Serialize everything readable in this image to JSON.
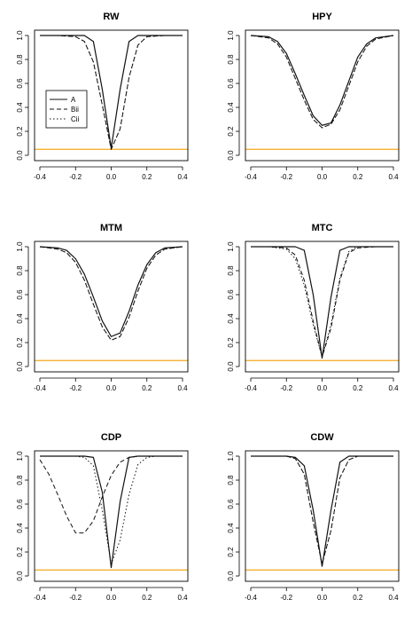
{
  "figure": {
    "colors": {
      "reference_line": "#F4A81D",
      "series_line": "#111111",
      "frame": "#000000"
    }
  },
  "chart_data": [
    {
      "type": "line",
      "title": "RW",
      "xlim": [
        -0.4,
        0.4
      ],
      "ylim": [
        0,
        1
      ],
      "x_ticks": [
        "-0.4",
        "-0.2",
        "0.0",
        "0.2",
        "0.4"
      ],
      "y_ticks": [
        "0.0",
        "0.2",
        "0.4",
        "0.6",
        "0.8",
        "1.0"
      ],
      "grid": false,
      "legend": {
        "position": "left",
        "entries": [
          "A",
          "Bii",
          "Cii"
        ]
      },
      "reference_line": {
        "y": 0.05
      },
      "x": [
        -0.4,
        -0.3,
        -0.2,
        -0.15,
        -0.1,
        -0.05,
        0,
        0.05,
        0.1,
        0.15,
        0.2,
        0.3,
        0.4
      ],
      "series": [
        {
          "name": "A",
          "style": "solid",
          "values": [
            1,
            1,
            1,
            1,
            0.95,
            0.55,
            0.06,
            0.55,
            0.95,
            1,
            1,
            1,
            1
          ]
        },
        {
          "name": "Bii",
          "style": "dashed",
          "values": [
            1,
            1,
            0.99,
            0.95,
            0.78,
            0.42,
            0.05,
            0.22,
            0.65,
            0.92,
            0.99,
            1,
            1
          ]
        },
        {
          "name": "Cii",
          "style": "dotted",
          "values": [
            1,
            1,
            0.99,
            0.95,
            0.78,
            0.42,
            0.05,
            0.22,
            0.65,
            0.92,
            0.99,
            1,
            1
          ]
        }
      ]
    },
    {
      "type": "line",
      "title": "HPY",
      "xlim": [
        -0.4,
        0.4
      ],
      "ylim": [
        0,
        1
      ],
      "x_ticks": [
        "-0.4",
        "-0.2",
        "0.0",
        "0.2",
        "0.4"
      ],
      "y_ticks": [
        "0.0",
        "0.2",
        "0.4",
        "0.6",
        "0.8",
        "1.0"
      ],
      "grid": false,
      "reference_line": {
        "y": 0.05
      },
      "x": [
        -0.4,
        -0.3,
        -0.25,
        -0.2,
        -0.15,
        -0.1,
        -0.05,
        0,
        0.05,
        0.1,
        0.15,
        0.2,
        0.25,
        0.3,
        0.4
      ],
      "series": [
        {
          "name": "A",
          "style": "solid",
          "values": [
            1,
            0.99,
            0.95,
            0.85,
            0.68,
            0.5,
            0.33,
            0.25,
            0.27,
            0.42,
            0.62,
            0.82,
            0.93,
            0.98,
            1
          ]
        },
        {
          "name": "Bii",
          "style": "dashed",
          "values": [
            1,
            0.98,
            0.93,
            0.82,
            0.64,
            0.46,
            0.3,
            0.23,
            0.26,
            0.38,
            0.58,
            0.78,
            0.91,
            0.97,
            1
          ]
        },
        {
          "name": "Cii",
          "style": "dotted",
          "values": [
            1,
            0.98,
            0.93,
            0.82,
            0.64,
            0.46,
            0.3,
            0.23,
            0.26,
            0.38,
            0.58,
            0.78,
            0.91,
            0.97,
            1
          ]
        }
      ]
    },
    {
      "type": "line",
      "title": "MTM",
      "xlim": [
        -0.4,
        0.4
      ],
      "ylim": [
        0,
        1
      ],
      "x_ticks": [
        "-0.4",
        "-0.2",
        "0.0",
        "0.2",
        "0.4"
      ],
      "y_ticks": [
        "0.0",
        "0.2",
        "0.4",
        "0.6",
        "0.8",
        "1.0"
      ],
      "grid": false,
      "reference_line": {
        "y": 0.05
      },
      "x": [
        -0.4,
        -0.3,
        -0.25,
        -0.2,
        -0.15,
        -0.1,
        -0.05,
        0,
        0.05,
        0.1,
        0.15,
        0.2,
        0.25,
        0.3,
        0.4
      ],
      "series": [
        {
          "name": "A",
          "style": "solid",
          "values": [
            1,
            0.99,
            0.97,
            0.9,
            0.77,
            0.58,
            0.38,
            0.25,
            0.28,
            0.46,
            0.68,
            0.85,
            0.95,
            0.99,
            1
          ]
        },
        {
          "name": "Bii",
          "style": "dashed",
          "values": [
            1,
            0.98,
            0.95,
            0.87,
            0.72,
            0.52,
            0.33,
            0.22,
            0.25,
            0.41,
            0.63,
            0.82,
            0.93,
            0.98,
            1
          ]
        },
        {
          "name": "Cii",
          "style": "dotted",
          "values": [
            1,
            0.98,
            0.95,
            0.87,
            0.72,
            0.52,
            0.33,
            0.22,
            0.25,
            0.41,
            0.63,
            0.82,
            0.93,
            0.98,
            1
          ]
        }
      ]
    },
    {
      "type": "line",
      "title": "MTC",
      "xlim": [
        -0.4,
        0.4
      ],
      "ylim": [
        0,
        1
      ],
      "x_ticks": [
        "-0.4",
        "-0.2",
        "0.0",
        "0.2",
        "0.4"
      ],
      "y_ticks": [
        "0.0",
        "0.2",
        "0.4",
        "0.6",
        "0.8",
        "1.0"
      ],
      "grid": false,
      "reference_line": {
        "y": 0.05
      },
      "x": [
        -0.4,
        -0.3,
        -0.2,
        -0.15,
        -0.1,
        -0.05,
        0,
        0.05,
        0.1,
        0.15,
        0.2,
        0.3,
        0.4
      ],
      "series": [
        {
          "name": "A",
          "style": "solid",
          "values": [
            1,
            1,
            1,
            1,
            0.97,
            0.6,
            0.07,
            0.58,
            0.97,
            1,
            1,
            1,
            1
          ]
        },
        {
          "name": "Bii",
          "style": "dashed",
          "values": [
            1,
            1,
            0.99,
            0.93,
            0.72,
            0.38,
            0.08,
            0.32,
            0.72,
            0.95,
            0.99,
            1,
            1
          ]
        },
        {
          "name": "Cii",
          "style": "dotted",
          "values": [
            1,
            1,
            0.98,
            0.9,
            0.68,
            0.35,
            0.08,
            0.35,
            0.74,
            0.96,
            1,
            1,
            1
          ]
        }
      ]
    },
    {
      "type": "line",
      "title": "CDP",
      "xlim": [
        -0.4,
        0.4
      ],
      "ylim": [
        0,
        1
      ],
      "x_ticks": [
        "-0.4",
        "-0.2",
        "0.0",
        "0.2",
        "0.4"
      ],
      "y_ticks": [
        "0.0",
        "0.2",
        "0.4",
        "0.6",
        "0.8",
        "1.0"
      ],
      "grid": false,
      "reference_line": {
        "y": 0.05
      },
      "x": [
        -0.4,
        -0.35,
        -0.3,
        -0.25,
        -0.2,
        -0.15,
        -0.1,
        -0.05,
        0,
        0.05,
        0.1,
        0.15,
        0.2,
        0.25,
        0.3,
        0.4
      ],
      "series": [
        {
          "name": "A",
          "style": "solid",
          "values": [
            1,
            1,
            1,
            1,
            1,
            1,
            0.99,
            0.7,
            0.07,
            0.62,
            0.99,
            1,
            1,
            1,
            1,
            1
          ]
        },
        {
          "name": "Bii",
          "style": "dashed",
          "values": [
            0.97,
            0.85,
            0.68,
            0.5,
            0.36,
            0.36,
            0.46,
            0.66,
            0.84,
            0.95,
            0.99,
            1,
            1,
            1,
            1,
            1
          ]
        },
        {
          "name": "Cii",
          "style": "dotted",
          "values": [
            1,
            1,
            1,
            1,
            1,
            0.99,
            0.92,
            0.55,
            0.1,
            0.3,
            0.68,
            0.93,
            0.99,
            1,
            1,
            1
          ]
        }
      ]
    },
    {
      "type": "line",
      "title": "CDW",
      "xlim": [
        -0.4,
        0.4
      ],
      "ylim": [
        0,
        1
      ],
      "x_ticks": [
        "-0.4",
        "-0.2",
        "0.0",
        "0.2",
        "0.4"
      ],
      "y_ticks": [
        "0.0",
        "0.2",
        "0.4",
        "0.6",
        "0.8",
        "1.0"
      ],
      "grid": false,
      "reference_line": {
        "y": 0.05
      },
      "x": [
        -0.4,
        -0.3,
        -0.2,
        -0.15,
        -0.1,
        -0.05,
        0,
        0.05,
        0.1,
        0.15,
        0.2,
        0.3,
        0.4
      ],
      "series": [
        {
          "name": "A",
          "style": "solid",
          "values": [
            1,
            1,
            1,
            0.99,
            0.92,
            0.55,
            0.08,
            0.55,
            0.95,
            1,
            1,
            1,
            1
          ]
        },
        {
          "name": "Bii",
          "style": "dashed",
          "values": [
            1,
            1,
            1,
            0.98,
            0.85,
            0.45,
            0.1,
            0.38,
            0.82,
            0.97,
            1,
            1,
            1
          ]
        },
        {
          "name": "Cii",
          "style": "dotted",
          "values": [
            1,
            1,
            1,
            0.98,
            0.85,
            0.45,
            0.1,
            0.38,
            0.82,
            0.97,
            1,
            1,
            1
          ]
        }
      ]
    }
  ]
}
